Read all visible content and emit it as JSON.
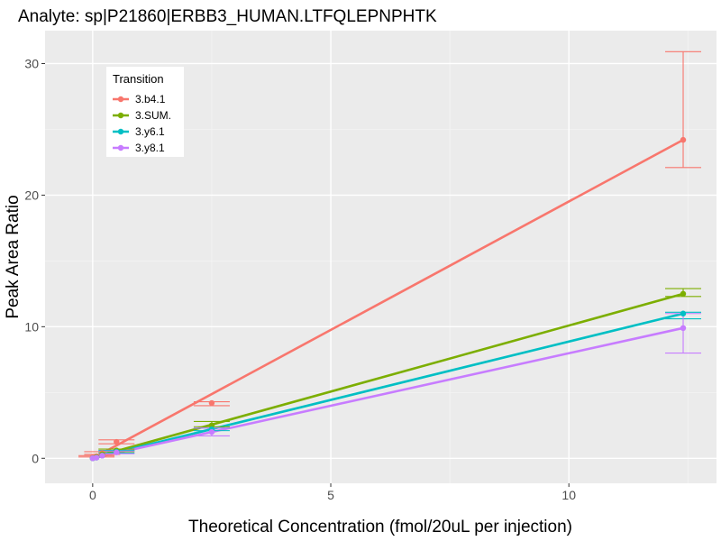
{
  "chart_data": {
    "type": "line",
    "title": "Analyte: sp|P21860|ERBB3_HUMAN.LTFQLEPNPHTK",
    "xlabel": "Theoretical Concentration (fmol/20uL per injection)",
    "ylabel": "Peak Area Ratio",
    "xlim": [
      -1.0,
      13.1
    ],
    "ylim": [
      -1.9,
      32.5
    ],
    "x_ticks": [
      0,
      5,
      10
    ],
    "y_ticks": [
      0,
      10,
      20,
      30
    ],
    "grid": true,
    "legend": {
      "title": "Transition",
      "position": "top-left"
    },
    "series": [
      {
        "name": "3.b4.1",
        "color": "#F8766D",
        "points": [
          {
            "x": 0.0,
            "y": 0.05
          },
          {
            "x": 0.08,
            "y": 0.15,
            "ymin": 0.1,
            "ymax": 0.2
          },
          {
            "x": 0.2,
            "y": 0.4,
            "ymin": 0.3,
            "ymax": 0.5
          },
          {
            "x": 0.5,
            "y": 1.25,
            "ymin": 1.1,
            "ymax": 1.4
          },
          {
            "x": 2.5,
            "y": 4.2,
            "ymin": 4.0,
            "ymax": 4.3
          },
          {
            "x": 12.4,
            "y": 24.2,
            "ymin": 22.1,
            "ymax": 30.9
          }
        ],
        "fit": [
          {
            "x": 0.0,
            "y": 0.0
          },
          {
            "x": 12.4,
            "y": 24.2
          }
        ]
      },
      {
        "name": "3.SUM.",
        "color": "#7CAE00",
        "points": [
          {
            "x": 0.0,
            "y": 0.0
          },
          {
            "x": 0.08,
            "y": 0.1
          },
          {
            "x": 0.2,
            "y": 0.3
          },
          {
            "x": 0.5,
            "y": 0.6,
            "ymin": 0.5,
            "ymax": 0.7
          },
          {
            "x": 2.5,
            "y": 2.5,
            "ymin": 2.4,
            "ymax": 2.8
          },
          {
            "x": 12.4,
            "y": 12.5,
            "ymin": 12.3,
            "ymax": 12.9
          }
        ],
        "fit": [
          {
            "x": 0.0,
            "y": 0.05
          },
          {
            "x": 12.4,
            "y": 12.5
          }
        ]
      },
      {
        "name": "3.y6.1",
        "color": "#00BFC4",
        "points": [
          {
            "x": 0.0,
            "y": 0.0
          },
          {
            "x": 0.08,
            "y": 0.05
          },
          {
            "x": 0.2,
            "y": 0.2
          },
          {
            "x": 0.5,
            "y": 0.5,
            "ymin": 0.4,
            "ymax": 0.6
          },
          {
            "x": 2.5,
            "y": 2.2,
            "ymin": 2.1,
            "ymax": 2.3
          },
          {
            "x": 12.4,
            "y": 11.0,
            "ymin": 10.6,
            "ymax": 11.1
          }
        ],
        "fit": [
          {
            "x": 0.0,
            "y": 0.0
          },
          {
            "x": 12.4,
            "y": 11.0
          }
        ]
      },
      {
        "name": "3.y8.1",
        "color": "#C77CFF",
        "points": [
          {
            "x": 0.0,
            "y": 0.0
          },
          {
            "x": 0.08,
            "y": 0.05
          },
          {
            "x": 0.2,
            "y": 0.2
          },
          {
            "x": 0.5,
            "y": 0.45,
            "ymin": 0.35,
            "ymax": 0.55
          },
          {
            "x": 2.5,
            "y": 2.0,
            "ymin": 1.7,
            "ymax": 2.3
          },
          {
            "x": 12.4,
            "y": 9.9,
            "ymin": 8.0,
            "ymax": 11.0
          }
        ],
        "fit": [
          {
            "x": 0.0,
            "y": 0.0
          },
          {
            "x": 12.4,
            "y": 9.9
          }
        ]
      }
    ]
  }
}
